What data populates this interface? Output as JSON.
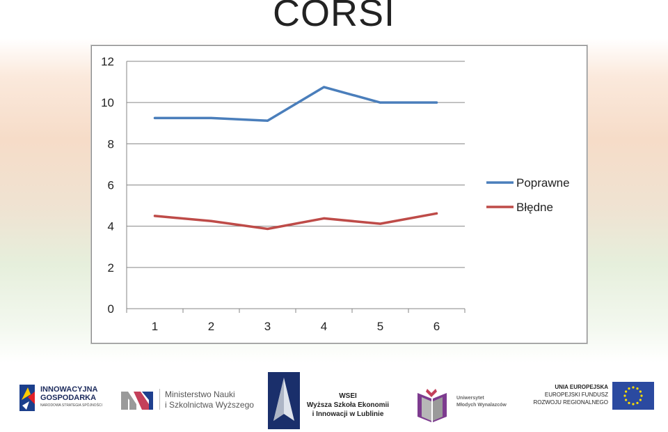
{
  "slide": {
    "title": "CORSI"
  },
  "chart_data": {
    "type": "line",
    "categories": [
      "1",
      "2",
      "3",
      "4",
      "5",
      "6"
    ],
    "series": [
      {
        "name": "Poprawne",
        "color": "#4a7ebb",
        "values": [
          9.25,
          9.25,
          9.12,
          10.75,
          10.0,
          10.0
        ]
      },
      {
        "name": "Błędne",
        "color": "#be4b48",
        "values": [
          4.5,
          4.25,
          3.87,
          4.38,
          4.12,
          4.62
        ]
      }
    ],
    "ylim": [
      0,
      12
    ],
    "yticks": [
      "0",
      "2",
      "4",
      "6",
      "8",
      "10",
      "12"
    ],
    "grid": true,
    "legend": "right"
  },
  "footer": {
    "innowacyjna": {
      "line1": "INNOWACYJNA",
      "line2": "GOSPODARKA",
      "line3": "NARODOWA STRATEGIA SPÓJNOŚCI"
    },
    "ministerstwo": {
      "line1": "Ministerstwo Nauki",
      "line2": "i Szkolnictwa Wyższego"
    },
    "wsei": {
      "line1": "WSEI",
      "line2": "Wyższa Szkoła Ekonomii",
      "line3": "i Innowacji w Lublinie"
    },
    "uniwersytet": {
      "line1": "Uniwersytet",
      "line2": "Młodych Wynalazców"
    },
    "eu": {
      "line1": "UNIA EUROPEJSKA",
      "line2": "EUROPEJSKI FUNDUSZ",
      "line3": "ROZWOJU REGIONALNEGO"
    }
  }
}
